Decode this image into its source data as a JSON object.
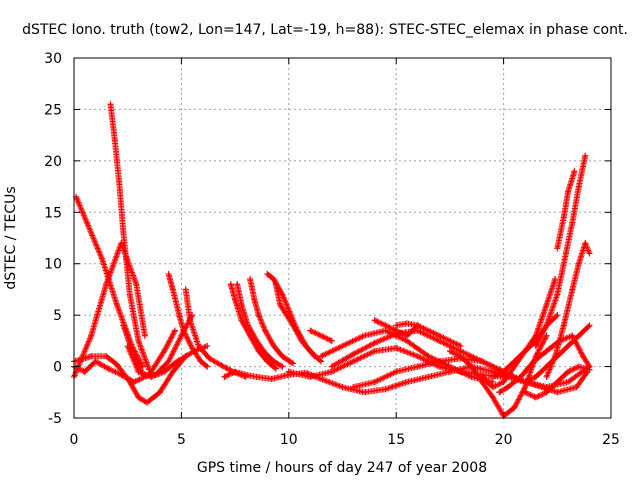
{
  "chart_data": {
    "type": "scatter",
    "title": "dSTEC Iono. truth (tow2, Lon=147, Lat=-19, h=88): STEC-STEC_elemax in phase cont.",
    "xlabel": "GPS time / hours of day 247 of year 2008",
    "ylabel": "dSTEC  / TECUs",
    "xlim": [
      0,
      25
    ],
    "ylim": [
      -5,
      30
    ],
    "xticks": [
      0,
      5,
      10,
      15,
      20,
      25
    ],
    "yticks": [
      -5,
      0,
      5,
      10,
      15,
      20,
      25,
      30
    ],
    "grid": true,
    "marker": "plus",
    "series_color": "#ff0000",
    "series": [
      {
        "x": [
          0.0,
          0.3,
          0.8,
          1.5,
          2.2,
          2.9,
          3.3
        ],
        "y": [
          -1.0,
          0.5,
          3.0,
          8.0,
          12.0,
          8.0,
          3.0
        ]
      },
      {
        "x": [
          0.1,
          0.6,
          1.3,
          2.0,
          2.7,
          3.2
        ],
        "y": [
          16.5,
          14.0,
          10.5,
          6.0,
          2.0,
          0.0
        ]
      },
      {
        "x": [
          1.7,
          1.9,
          2.1,
          2.3,
          2.6,
          3.0,
          3.5
        ],
        "y": [
          25.5,
          22.0,
          18.0,
          13.0,
          7.0,
          2.5,
          -0.3
        ]
      },
      {
        "x": [
          0.0,
          0.5,
          1.0,
          1.6,
          2.2,
          2.8,
          3.5,
          4.2,
          4.7
        ],
        "y": [
          0.0,
          -0.5,
          0.5,
          -0.2,
          -0.8,
          -1.5,
          -0.8,
          1.5,
          3.5
        ]
      },
      {
        "x": [
          0.0,
          0.8,
          1.5,
          2.0,
          2.6,
          3.0,
          3.4,
          4.0,
          4.6,
          5.2
        ],
        "y": [
          0.5,
          1.0,
          1.0,
          0.2,
          -1.5,
          -3.0,
          -3.5,
          -2.5,
          -0.5,
          1.0
        ]
      },
      {
        "x": [
          2.3,
          2.8,
          3.2,
          3.8,
          4.4,
          5.0,
          5.5
        ],
        "y": [
          4.0,
          1.0,
          -0.8,
          -0.8,
          0.5,
          3.0,
          5.0
        ]
      },
      {
        "x": [
          2.5,
          3.0,
          3.6,
          4.2,
          4.8,
          5.6,
          6.2
        ],
        "y": [
          2.0,
          -0.5,
          -1.0,
          -0.5,
          0.5,
          1.5,
          2.0
        ]
      },
      {
        "x": [
          4.4,
          4.6,
          4.9,
          5.1,
          5.5,
          5.9,
          6.2
        ],
        "y": [
          9.0,
          7.5,
          5.0,
          3.5,
          1.8,
          0.5,
          0.0
        ]
      },
      {
        "x": [
          5.2,
          5.4,
          5.8,
          6.3,
          6.8,
          7.4,
          8.0
        ],
        "y": [
          7.5,
          4.5,
          2.0,
          0.8,
          0.2,
          -0.5,
          -1.0
        ]
      },
      {
        "x": [
          7.3,
          7.5,
          7.8,
          8.2,
          8.6,
          9.0,
          9.4
        ],
        "y": [
          8.0,
          6.5,
          4.5,
          3.0,
          1.5,
          0.5,
          -0.2
        ]
      },
      {
        "x": [
          7.6,
          7.8,
          8.1,
          8.5,
          8.9,
          9.3,
          9.7
        ],
        "y": [
          8.0,
          6.0,
          4.0,
          2.5,
          1.3,
          0.5,
          0.0
        ]
      },
      {
        "x": [
          8.2,
          8.4,
          8.6,
          8.9,
          9.3,
          9.7,
          10.2
        ],
        "y": [
          8.5,
          6.5,
          5.0,
          3.5,
          2.0,
          1.0,
          0.3
        ]
      },
      {
        "x": [
          9.0,
          9.3,
          9.7,
          10.0,
          10.4,
          10.8,
          11.2
        ],
        "y": [
          9.0,
          8.5,
          7.0,
          5.5,
          3.5,
          2.0,
          1.0
        ]
      },
      {
        "x": [
          9.4,
          9.6,
          9.9,
          10.2,
          10.6,
          11.0,
          11.5
        ],
        "y": [
          8.0,
          6.0,
          5.0,
          4.0,
          2.5,
          1.5,
          0.5
        ]
      },
      {
        "x": [
          7.0,
          7.5,
          8.0,
          8.5,
          9.2,
          10.0,
          10.8,
          11.5,
          12.5,
          13.5,
          14.5,
          15.5,
          16.5,
          17.5,
          18.5,
          19.5,
          20.5,
          21.5,
          22.5,
          23.4,
          23.9
        ],
        "y": [
          -1.0,
          -0.5,
          -0.8,
          -1.0,
          -1.2,
          -0.8,
          -0.6,
          -1.2,
          -2.0,
          -2.5,
          -2.2,
          -1.5,
          -1.0,
          -0.5,
          0.0,
          -0.5,
          -1.2,
          -1.8,
          -2.5,
          -2.0,
          -0.5
        ]
      },
      {
        "x": [
          10.0,
          11.0,
          12.0,
          13.0,
          14.0,
          15.0,
          16.0,
          17.0,
          18.0,
          19.0,
          20.0
        ],
        "y": [
          -0.5,
          -1.0,
          -0.5,
          0.5,
          1.5,
          1.8,
          1.0,
          0.0,
          -0.5,
          -0.8,
          -1.0
        ]
      },
      {
        "x": [
          11.0,
          11.5,
          12.0
        ],
        "y": [
          3.5,
          3.0,
          2.5
        ]
      },
      {
        "x": [
          11.5,
          12.5,
          13.5,
          14.5,
          15.5,
          16.5,
          17.5,
          18.5,
          19.5
        ],
        "y": [
          1.0,
          2.0,
          3.0,
          3.5,
          2.5,
          1.0,
          0.0,
          -1.0,
          -1.5
        ]
      },
      {
        "x": [
          12.0,
          13.0,
          14.0,
          15.0,
          16.0,
          17.0,
          18.0,
          19.0,
          20.0,
          21.0,
          22.0
        ],
        "y": [
          0.0,
          1.2,
          2.3,
          3.2,
          3.5,
          2.5,
          1.5,
          0.5,
          -0.5,
          -1.5,
          -2.0
        ]
      },
      {
        "x": [
          13.0,
          14.0,
          15.0,
          16.0,
          17.0,
          18.0,
          19.0,
          20.0,
          21.0,
          22.0,
          23.0,
          24.0
        ],
        "y": [
          -2.0,
          -1.5,
          -0.5,
          0.0,
          0.5,
          0.8,
          0.5,
          -0.5,
          -1.5,
          -2.0,
          -1.5,
          0.0
        ]
      },
      {
        "x": [
          14.0,
          14.5,
          15.0,
          15.5,
          16.0
        ],
        "y": [
          4.5,
          4.0,
          3.5,
          3.0,
          4.0
        ]
      },
      {
        "x": [
          15.0,
          15.5,
          16.0,
          17.0,
          18.0
        ],
        "y": [
          4.0,
          4.2,
          4.0,
          3.0,
          2.0
        ]
      },
      {
        "x": [
          17.5,
          18.0,
          18.5,
          19.0,
          19.5,
          20.0,
          20.5,
          21.0,
          21.5,
          22.0
        ],
        "y": [
          1.5,
          1.0,
          0.0,
          -1.5,
          -3.0,
          -4.8,
          -4.0,
          -2.0,
          1.0,
          3.0
        ]
      },
      {
        "x": [
          19.0,
          19.5,
          20.0,
          20.5,
          21.0,
          21.5,
          22.0,
          22.4
        ],
        "y": [
          -1.0,
          -2.0,
          -1.5,
          0.0,
          1.5,
          3.0,
          6.0,
          8.5
        ]
      },
      {
        "x": [
          19.5,
          20.0,
          20.5,
          21.0,
          21.5,
          22.0,
          22.5
        ],
        "y": [
          -1.0,
          -0.5,
          0.5,
          1.5,
          2.5,
          4.0,
          5.0
        ]
      },
      {
        "x": [
          19.8,
          20.2,
          20.8,
          21.4,
          22.0,
          22.6,
          23.2,
          23.7,
          24.0
        ],
        "y": [
          -2.5,
          -2.0,
          -1.0,
          0.5,
          1.5,
          2.5,
          3.0,
          1.0,
          0.0
        ]
      },
      {
        "x": [
          21.0,
          21.5,
          22.0,
          22.5,
          23.0,
          23.5,
          24.0
        ],
        "y": [
          -1.5,
          -1.0,
          0.0,
          1.0,
          2.0,
          3.0,
          4.0
        ]
      },
      {
        "x": [
          22.0,
          22.4,
          22.8,
          23.2,
          23.5,
          23.8,
          24.0
        ],
        "y": [
          -1.0,
          1.0,
          4.0,
          7.5,
          10.0,
          12.0,
          11.0
        ]
      },
      {
        "x": [
          21.5,
          22.0,
          22.5,
          22.9,
          23.2,
          23.5,
          23.8
        ],
        "y": [
          2.0,
          4.0,
          7.0,
          11.0,
          14.0,
          17.5,
          20.5
        ]
      },
      {
        "x": [
          22.5,
          22.8,
          23.0,
          23.3
        ],
        "y": [
          11.5,
          14.5,
          17.0,
          19.0
        ]
      },
      {
        "x": [
          21.0,
          21.5,
          22.0,
          22.5,
          23.0,
          23.5,
          24.0
        ],
        "y": [
          -2.5,
          -3.0,
          -2.5,
          -1.5,
          -0.5,
          0.0,
          -0.3
        ]
      }
    ]
  }
}
